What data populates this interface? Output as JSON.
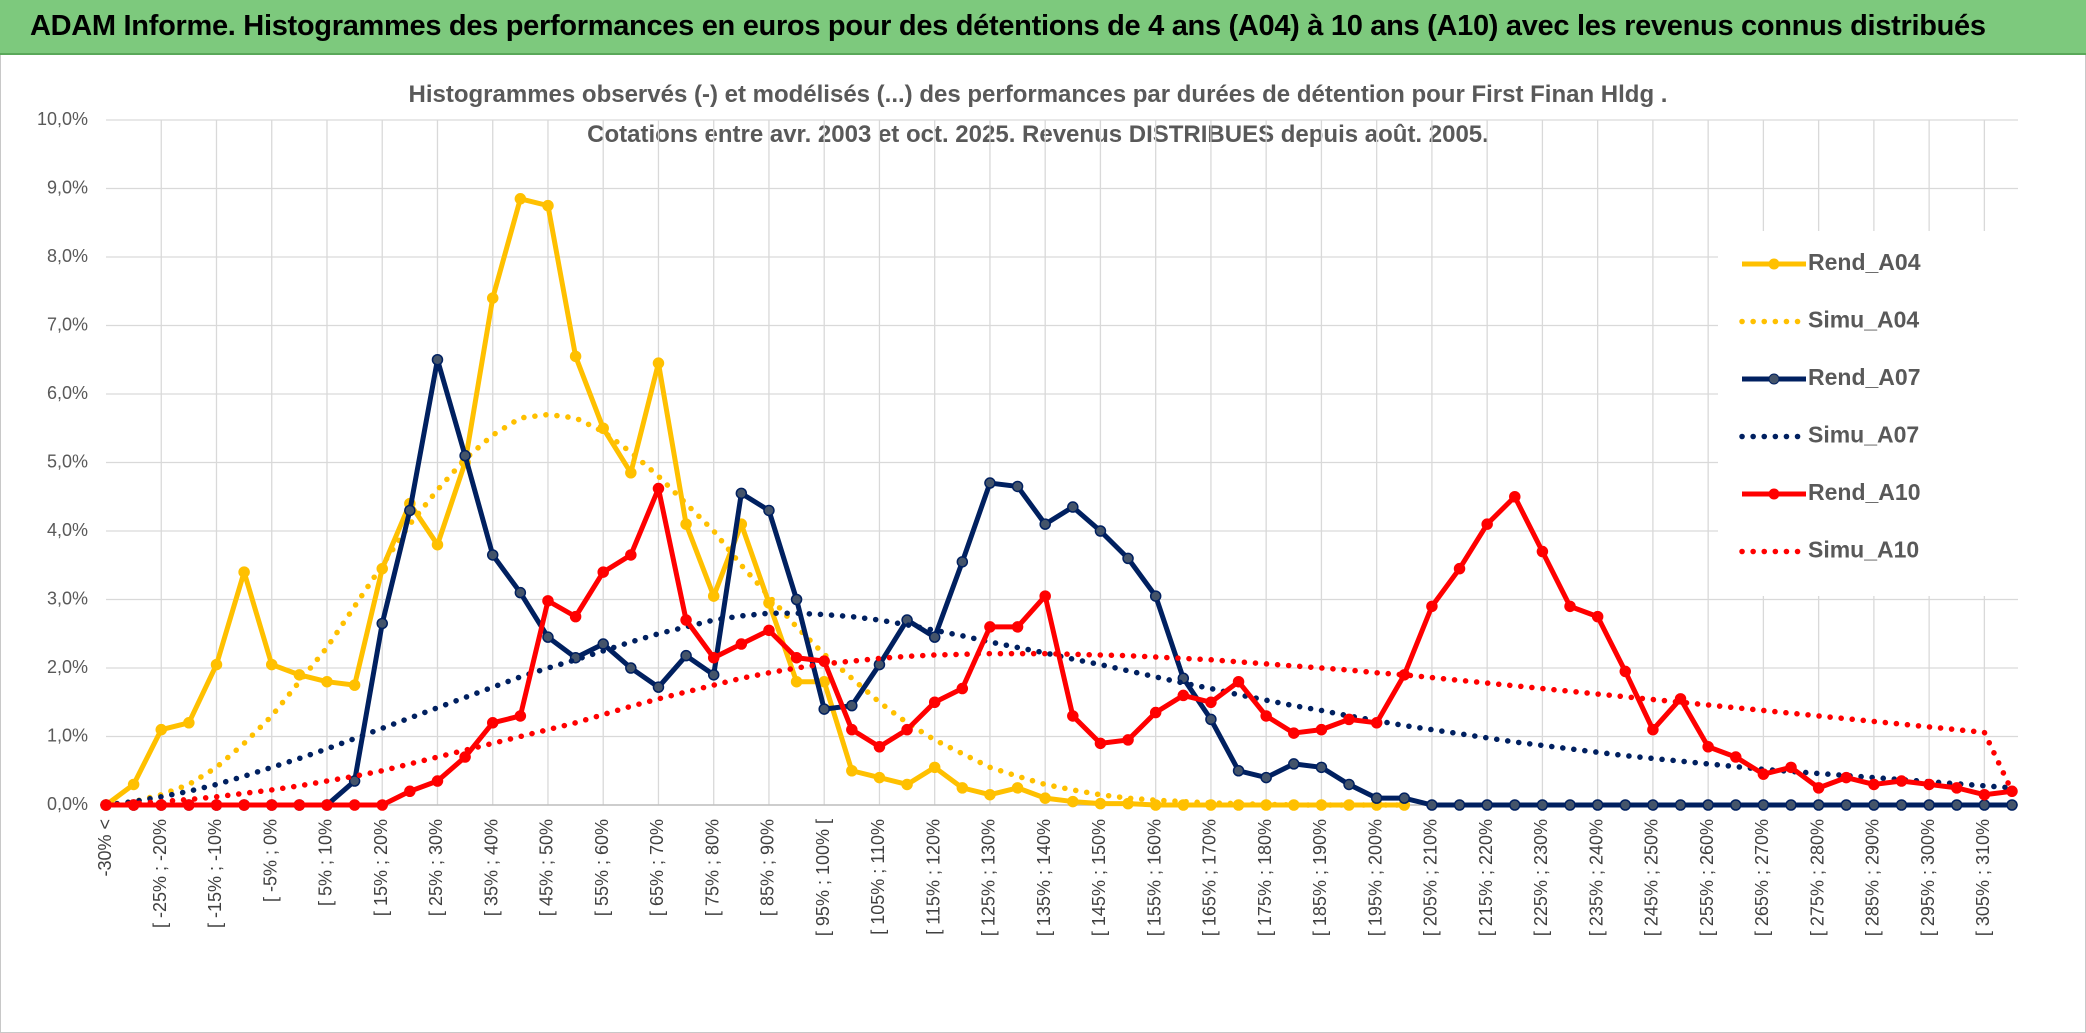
{
  "header": {
    "title": "ADAM Informe. Histogrammes des performances en euros pour des détentions de 4 ans (A04) à 10 ans (A10) avec les revenus connus distribués"
  },
  "chart_data": {
    "type": "line",
    "title": "Histogrammes observés (-) et modélisés (...) des performances par durées de détention pour First Finan Hldg .",
    "subtitle": "Cotations entre avr. 2003 et oct. 2025. Revenus DISTRIBUES depuis août. 2005.",
    "categories": [
      "-30% <",
      null,
      "[ -25% ; -20%",
      null,
      "[ -15% ; -10%",
      null,
      "[ -5% ; 0%",
      null,
      "[ 5% ; 10%",
      null,
      "[ 15% ; 20%",
      null,
      "[ 25% ; 30%",
      null,
      "[ 35% ; 40%",
      null,
      "[ 45% ; 50%",
      null,
      "[ 55% ; 60%",
      null,
      "[ 65% ; 70%",
      null,
      "[ 75% ; 80%",
      null,
      "[ 85% ; 90%",
      null,
      "[ 95% ; 100% [",
      null,
      "[ 105% ; 110%",
      null,
      "[ 115% ; 120%",
      null,
      "[ 125% ; 130%",
      null,
      "[ 135% ; 140%",
      null,
      "[ 145% ; 150%",
      null,
      "[ 155% ; 160%",
      null,
      "[ 165% ; 170%",
      null,
      "[ 175% ; 180%",
      null,
      "[ 185% ; 190%",
      null,
      "[ 195% ; 200%",
      null,
      "[ 205% ; 210%",
      null,
      "[ 215% ; 220%",
      null,
      "[ 225% ; 230%",
      null,
      "[ 235% ; 240%",
      null,
      "[ 245% ; 250%",
      null,
      "[ 255% ; 260%",
      null,
      "[ 265% ; 270%",
      null,
      "[ 275% ; 280%",
      null,
      "[ 285% ; 290%",
      null,
      "[ 295% ; 300%",
      null,
      "[ 305% ; 310%",
      null
    ],
    "ylim": [
      0,
      10
    ],
    "yticks": [
      {
        "value": 0,
        "label": "0,0%"
      },
      {
        "value": 1,
        "label": "1,0%"
      },
      {
        "value": 2,
        "label": "2,0%"
      },
      {
        "value": 3,
        "label": "3,0%"
      },
      {
        "value": 4,
        "label": "4,0%"
      },
      {
        "value": 5,
        "label": "5,0%"
      },
      {
        "value": 6,
        "label": "6,0%"
      },
      {
        "value": 7,
        "label": "7,0%"
      },
      {
        "value": 8,
        "label": "8,0%"
      },
      {
        "value": 9,
        "label": "9,0%"
      },
      {
        "value": 10,
        "label": "10,0%"
      }
    ],
    "grid": true,
    "legend": "right",
    "series": [
      {
        "name": "Rend_A04",
        "color": "#ffc000",
        "style": "solid",
        "marker": true,
        "values": [
          0,
          0.3,
          1.1,
          1.2,
          2.05,
          3.4,
          2.05,
          1.9,
          1.8,
          1.75,
          3.45,
          4.4,
          3.8,
          5.0,
          7.4,
          8.85,
          8.75,
          6.55,
          5.5,
          4.85,
          6.45,
          4.1,
          3.05,
          4.1,
          2.95,
          1.8,
          1.8,
          0.5,
          0.4,
          0.3,
          0.55,
          0.25,
          0.15,
          0.25,
          0.1,
          0.05,
          0.02,
          0.02,
          0,
          0,
          0,
          0,
          0,
          0,
          0,
          0,
          0,
          0,
          null,
          null,
          null,
          null,
          null,
          null,
          null,
          null,
          null,
          null,
          null,
          null,
          null,
          null,
          null,
          null,
          null,
          null,
          null,
          null,
          null,
          null
        ]
      },
      {
        "name": "Simu_A04",
        "color": "#ffc000",
        "style": "dotted",
        "marker": false,
        "values": [
          0,
          0.05,
          0.15,
          0.3,
          0.55,
          0.9,
          1.3,
          1.8,
          2.3,
          2.9,
          3.5,
          4.1,
          4.6,
          5.05,
          5.4,
          5.65,
          5.7,
          5.65,
          5.45,
          5.15,
          4.8,
          4.4,
          4.0,
          3.5,
          3.05,
          2.6,
          2.2,
          1.85,
          1.5,
          1.2,
          0.95,
          0.75,
          0.55,
          0.42,
          0.3,
          0.22,
          0.15,
          0.1,
          0.07,
          0.05,
          0.03,
          0.02,
          0.01,
          0,
          0,
          0,
          0,
          0,
          null,
          null,
          null,
          null,
          null,
          null,
          null,
          null,
          null,
          null,
          null,
          null,
          null,
          null,
          null,
          null,
          null,
          null,
          null,
          null,
          null,
          null
        ]
      },
      {
        "name": "Rend_A07",
        "color": "#002060",
        "style": "solid",
        "marker": true,
        "values": [
          0,
          0,
          0,
          0,
          0,
          0,
          0,
          0,
          0,
          0.35,
          2.65,
          4.3,
          6.5,
          5.1,
          3.65,
          3.1,
          2.45,
          2.15,
          2.35,
          2.0,
          1.72,
          2.18,
          1.9,
          4.55,
          4.3,
          3.0,
          1.4,
          1.45,
          2.05,
          2.7,
          2.45,
          3.55,
          4.7,
          4.65,
          4.1,
          4.35,
          4.0,
          3.6,
          3.05,
          1.85,
          1.25,
          0.5,
          0.4,
          0.6,
          0.55,
          0.3,
          0.1,
          0.1,
          0,
          0,
          0,
          0,
          0,
          0,
          0,
          0,
          0,
          0,
          0,
          0,
          0,
          0,
          0,
          0,
          0,
          0,
          0,
          0,
          0,
          0
        ]
      },
      {
        "name": "Simu_A07",
        "color": "#002060",
        "style": "dotted",
        "marker": false,
        "values": [
          0,
          0.05,
          0.12,
          0.2,
          0.3,
          0.42,
          0.55,
          0.68,
          0.82,
          0.97,
          1.12,
          1.27,
          1.42,
          1.57,
          1.72,
          1.87,
          2.0,
          2.12,
          2.25,
          2.38,
          2.5,
          2.6,
          2.7,
          2.76,
          2.8,
          2.8,
          2.78,
          2.75,
          2.7,
          2.63,
          2.55,
          2.47,
          2.38,
          2.3,
          2.22,
          2.13,
          2.05,
          1.96,
          1.87,
          1.78,
          1.7,
          1.61,
          1.53,
          1.45,
          1.38,
          1.3,
          1.23,
          1.16,
          1.1,
          1.04,
          0.98,
          0.92,
          0.87,
          0.82,
          0.77,
          0.72,
          0.68,
          0.64,
          0.6,
          0.56,
          0.52,
          0.49,
          0.46,
          0.43,
          0.4,
          0.37,
          0.34,
          0.31,
          0.28,
          0.25
        ]
      },
      {
        "name": "Rend_A10",
        "color": "#ff0000",
        "style": "solid",
        "marker": true,
        "values": [
          0,
          0,
          0,
          0,
          0,
          0,
          0,
          0,
          0,
          0,
          0,
          0.2,
          0.35,
          0.7,
          1.2,
          1.3,
          2.98,
          2.75,
          3.4,
          3.65,
          4.62,
          2.7,
          2.15,
          2.35,
          2.55,
          2.15,
          2.1,
          1.1,
          0.85,
          1.1,
          1.5,
          1.7,
          2.6,
          2.6,
          3.05,
          1.3,
          0.9,
          0.95,
          1.35,
          1.6,
          1.5,
          1.8,
          1.3,
          1.05,
          1.1,
          1.25,
          1.2,
          1.9,
          2.9,
          3.45,
          4.1,
          4.5,
          3.7,
          2.9,
          2.75,
          1.95,
          1.1,
          1.55,
          0.85,
          0.7,
          0.45,
          0.55,
          0.25,
          0.4,
          0.3,
          0.35,
          0.3,
          0.25,
          0.15,
          0.2
        ]
      },
      {
        "name": "Simu_A10",
        "color": "#ff0000",
        "style": "dotted",
        "marker": false,
        "values": [
          0,
          0.02,
          0.05,
          0.08,
          0.12,
          0.17,
          0.22,
          0.28,
          0.35,
          0.42,
          0.5,
          0.6,
          0.7,
          0.8,
          0.9,
          1.0,
          1.1,
          1.2,
          1.32,
          1.44,
          1.55,
          1.65,
          1.75,
          1.85,
          1.93,
          2.0,
          2.06,
          2.1,
          2.14,
          2.17,
          2.19,
          2.2,
          2.21,
          2.21,
          2.21,
          2.2,
          2.19,
          2.18,
          2.16,
          2.14,
          2.12,
          2.09,
          2.06,
          2.03,
          2.0,
          1.97,
          1.93,
          1.9,
          1.86,
          1.82,
          1.78,
          1.74,
          1.7,
          1.66,
          1.62,
          1.58,
          1.54,
          1.5,
          1.46,
          1.42,
          1.38,
          1.34,
          1.3,
          1.26,
          1.22,
          1.18,
          1.14,
          1.1,
          1.06,
          0.2
        ]
      }
    ]
  }
}
